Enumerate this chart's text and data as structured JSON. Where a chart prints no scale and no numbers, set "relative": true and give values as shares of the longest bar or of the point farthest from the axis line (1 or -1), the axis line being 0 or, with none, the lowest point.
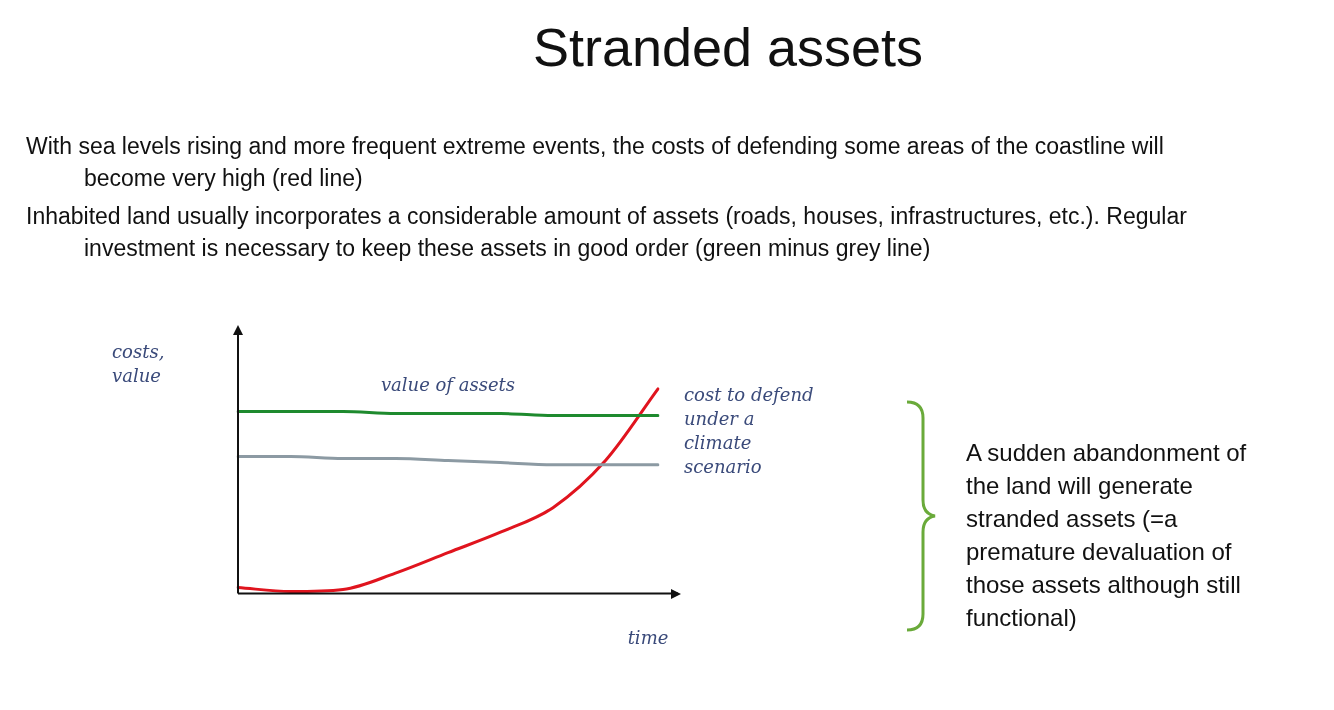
{
  "chart_data": {
    "type": "line",
    "title": "Stranded assets",
    "xlabel": "time",
    "ylabel": "costs, value",
    "relative": true,
    "grid": false,
    "legend": false,
    "marker": "none",
    "line_style": "solid",
    "categories": [
      null,
      null,
      null,
      null,
      null,
      null,
      null,
      null,
      null
    ],
    "series": [
      {
        "name": "value of assets",
        "color": "#1e8a2e",
        "values": [
          0.89,
          0.89,
          0.89,
          0.88,
          0.88,
          0.88,
          0.87,
          0.87,
          0.87
        ]
      },
      {
        "color": "#8c9aa3",
        "values": [
          0.67,
          0.67,
          0.66,
          0.66,
          0.65,
          0.64,
          0.63,
          0.63,
          0.63
        ]
      },
      {
        "name": "cost to defend under a climate scenario",
        "color": "#e0141e",
        "values": [
          0.03,
          0.01,
          0.02,
          0.1,
          0.2,
          0.3,
          0.42,
          0.65,
          1.0
        ]
      }
    ],
    "annotations": [
      "With sea levels rising and more frequent extreme events, the costs of defending some areas of the coastline will become very high (red line)",
      "Inhabited land usually incorporates a considerable amount of assets (roads, houses, infrastructures, etc.). Regular investment is necessary to keep these assets in good order (green minus grey line)",
      "A sudden abandonment of the land will generate stranded assets (=a premature devaluation of those assets although still functional)"
    ]
  }
}
